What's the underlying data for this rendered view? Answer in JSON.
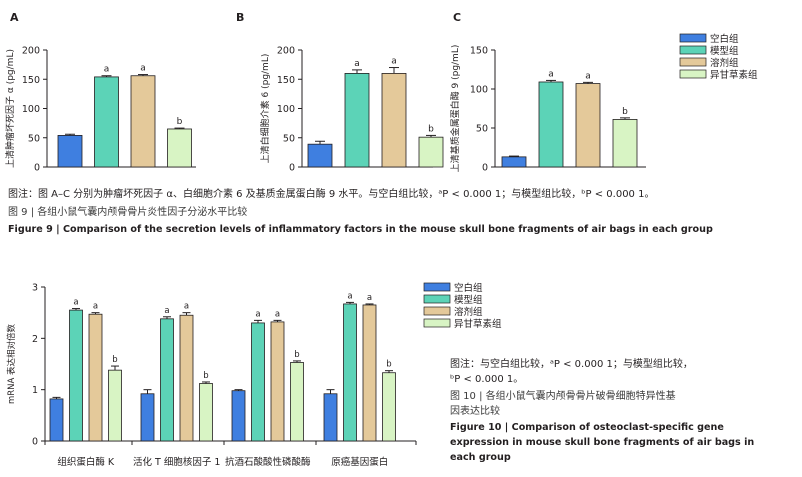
{
  "colors": {
    "blank": "#3f7fe0",
    "model": "#5cd3b7",
    "solvent": "#e4c99a",
    "treat": "#d8f4c4",
    "axis": "#231f20"
  },
  "legend": [
    "空白组",
    "模型组",
    "溶剂组",
    "异甘草素组"
  ],
  "chart_data": [
    {
      "type": "bar",
      "panel_label": "A",
      "ylabel": "上清肿瘤坏死因子 α (pg/mL)",
      "ylim": [
        0,
        200
      ],
      "yticks": [
        "0",
        "50",
        "100",
        "150",
        "200"
      ],
      "series": [
        {
          "name": "空白组",
          "values": [
            54
          ],
          "errors": [
            2
          ]
        },
        {
          "name": "模型组",
          "values": [
            154
          ],
          "errors": [
            2
          ],
          "sig": "a"
        },
        {
          "name": "溶剂组",
          "values": [
            156
          ],
          "errors": [
            2
          ],
          "sig": "a"
        },
        {
          "name": "异甘草素组",
          "values": [
            65
          ],
          "errors": [
            1.5
          ],
          "sig": "b"
        }
      ]
    },
    {
      "type": "bar",
      "panel_label": "B",
      "ylabel": "上清白细胞介素 6 (pg/mL)",
      "ylim": [
        0,
        200
      ],
      "yticks": [
        "0",
        "50",
        "100",
        "150",
        "200"
      ],
      "series": [
        {
          "name": "空白组",
          "values": [
            39
          ],
          "errors": [
            5
          ]
        },
        {
          "name": "模型组",
          "values": [
            160
          ],
          "errors": [
            6
          ],
          "sig": "a"
        },
        {
          "name": "溶剂组",
          "values": [
            160
          ],
          "errors": [
            10
          ],
          "sig": "a"
        },
        {
          "name": "异甘草素组",
          "values": [
            51
          ],
          "errors": [
            3
          ],
          "sig": "b"
        }
      ]
    },
    {
      "type": "bar",
      "panel_label": "C",
      "ylabel": "上清基质金属蛋白酶 9 (pg/mL)",
      "ylim": [
        0,
        150
      ],
      "yticks": [
        "0",
        "50",
        "100",
        "150"
      ],
      "series": [
        {
          "name": "空白组",
          "values": [
            13
          ],
          "errors": [
            1
          ]
        },
        {
          "name": "模型组",
          "values": [
            109
          ],
          "errors": [
            2
          ],
          "sig": "a"
        },
        {
          "name": "溶剂组",
          "values": [
            107
          ],
          "errors": [
            1.5
          ],
          "sig": "a"
        },
        {
          "name": "异甘草素组",
          "values": [
            61
          ],
          "errors": [
            2
          ],
          "sig": "b"
        }
      ]
    },
    {
      "type": "bar",
      "ylabel": "mRNA 表达相对倍数",
      "ylim": [
        0,
        3
      ],
      "yticks": [
        "0",
        "1",
        "2",
        "3"
      ],
      "categories": [
        "组织蛋白酶 K",
        "活化 T 细胞核因子 1",
        "抗酒石酸酸性磷酸酶",
        "原癌基因蛋白"
      ],
      "series": [
        {
          "name": "空白组",
          "values": [
            0.82,
            0.92,
            0.98,
            0.92
          ],
          "errors": [
            0.03,
            0.08,
            0.02,
            0.08
          ]
        },
        {
          "name": "模型组",
          "values": [
            2.55,
            2.38,
            2.3,
            2.67
          ],
          "errors": [
            0.03,
            0.04,
            0.05,
            0.03
          ],
          "sig": [
            "a",
            "a",
            "a",
            "a"
          ]
        },
        {
          "name": "溶剂组",
          "values": [
            2.47,
            2.45,
            2.32,
            2.65
          ],
          "errors": [
            0.03,
            0.05,
            0.03,
            0.02
          ],
          "sig": [
            "a",
            "a",
            "a",
            "a"
          ]
        },
        {
          "name": "异甘草素组",
          "values": [
            1.38,
            1.12,
            1.53,
            1.33
          ],
          "errors": [
            0.08,
            0.03,
            0.03,
            0.04
          ],
          "sig": [
            "b",
            "b",
            "b",
            "b"
          ]
        }
      ]
    }
  ],
  "fig9": {
    "note": "图注：图 A–C 分别为肿瘤坏死因子 α、白细胞介素 6 及基质金属蛋白酶 9 水平。与空白组比较，ᵃP < 0.000 1；与模型组比较，ᵇP < 0.000 1。",
    "title_cn": "图 9 | 各组小鼠气囊内颅骨骨片炎性因子分泌水平比较",
    "title_en": "Figure 9 | Comparison of the secretion levels of inflammatory factors in the mouse skull bone fragments of air bags in each group"
  },
  "fig10": {
    "note_line1": "图注：与空白组比较，ᵃP < 0.000 1；与模型组比较，",
    "note_line2": "ᵇP < 0.000 1。",
    "title_cn_line1": "图 10 | 各组小鼠气囊内颅骨骨片破骨细胞特异性基",
    "title_cn_line2": "因表达比较",
    "title_en_line1": "Figure 10 | Comparison of osteoclast-specific gene",
    "title_en_line2": "expression in mouse skull bone fragments of air bags in",
    "title_en_line3": "each group"
  }
}
